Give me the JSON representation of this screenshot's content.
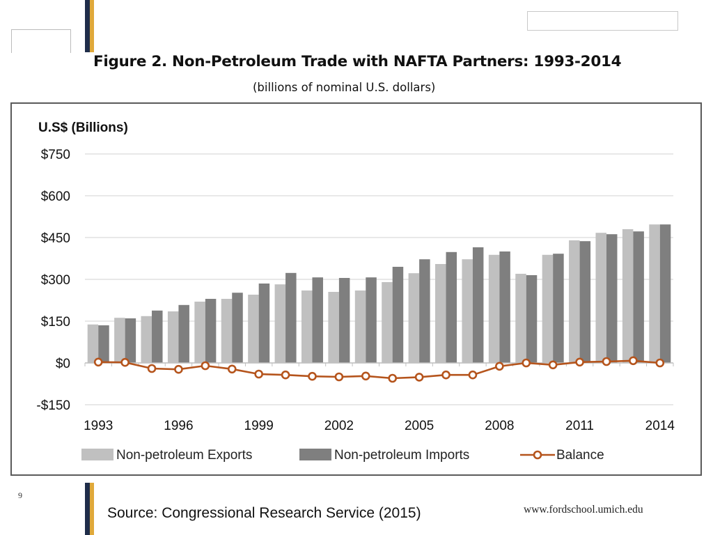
{
  "slide": {
    "page_number": "9",
    "source": "Source:  Congressional Research Service (2015)",
    "website": "www.fordschool.umich.edu"
  },
  "colors": {
    "navy": "#1f2d4a",
    "gold": "#e0a93a",
    "exports": "#c0c0c0",
    "imports": "#7f7f7f",
    "balance": "#b5541c"
  },
  "chart_data": {
    "type": "bar",
    "title": "Figure 2. Non-Petroleum Trade with NAFTA Partners: 1993-2014",
    "subtitle": "(billions of nominal U.S. dollars)",
    "ylabel": "U.S$ (Billions)",
    "xlabel": "",
    "ylim": [
      -150,
      750
    ],
    "y_ticks": [
      750,
      600,
      450,
      300,
      150,
      0,
      -150
    ],
    "y_tick_labels": [
      "$750",
      "$600",
      "$450",
      "$300",
      "$150",
      "$0",
      "-$150"
    ],
    "categories": [
      "1993",
      "1994",
      "1995",
      "1996",
      "1997",
      "1998",
      "1999",
      "2000",
      "2001",
      "2002",
      "2003",
      "2004",
      "2005",
      "2006",
      "2007",
      "2008",
      "2009",
      "2010",
      "2011",
      "2012",
      "2013",
      "2014"
    ],
    "x_tick_labels": [
      "1993",
      "1996",
      "1999",
      "2002",
      "2005",
      "2008",
      "2011",
      "2014"
    ],
    "grid": true,
    "legend_position": "bottom",
    "series": [
      {
        "name": "Non-petroleum Exports",
        "kind": "bar",
        "values": [
          138,
          162,
          168,
          185,
          220,
          230,
          245,
          282,
          260,
          255,
          260,
          290,
          322,
          355,
          372,
          388,
          320,
          388,
          440,
          467,
          480,
          497
        ]
      },
      {
        "name": "Non-petroleum Imports",
        "kind": "bar",
        "values": [
          135,
          160,
          188,
          208,
          230,
          252,
          285,
          323,
          307,
          305,
          307,
          345,
          372,
          398,
          415,
          400,
          315,
          392,
          437,
          462,
          472,
          497
        ]
      },
      {
        "name": "Balance",
        "kind": "line",
        "values": [
          3,
          2,
          -20,
          -23,
          -10,
          -22,
          -40,
          -43,
          -48,
          -50,
          -47,
          -55,
          -51,
          -43,
          -43,
          -12,
          0,
          -7,
          3,
          5,
          8,
          0
        ]
      }
    ]
  }
}
